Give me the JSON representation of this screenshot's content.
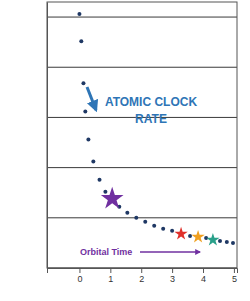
{
  "chart_data": {
    "type": "scatter",
    "annotations": [
      "ATOMIC CLOCK RATE",
      "Orbital Time"
    ],
    "xlim": [
      -1.05,
      5.1
    ],
    "xticks": [
      0,
      1,
      2,
      3,
      4,
      5
    ],
    "ylim": [
      0,
      5.3
    ],
    "yticks": [
      0,
      1,
      2,
      3,
      4,
      5
    ],
    "grid": true,
    "tick_labels": "x",
    "series": [
      {
        "color": "#1f3864",
        "marker": "circle",
        "x": [
          0,
          0.06,
          0.13,
          0.19,
          0.29,
          0.45,
          0.65,
          0.84,
          1.29,
          1.55,
          1.84,
          2.13,
          2.42,
          2.71,
          3.0,
          3.58,
          4.1,
          4.55,
          4.77,
          4.97
        ],
        "values": [
          5.06,
          4.52,
          3.68,
          3.12,
          2.56,
          2.12,
          1.76,
          1.52,
          1.22,
          1.1,
          1.0,
          0.92,
          0.84,
          0.78,
          0.74,
          0.64,
          0.6,
          0.54,
          0.52,
          0.5
        ]
      },
      {
        "colors": [
          "#7030a0",
          "#e0302a",
          "#f0a020",
          "#2aa08a"
        ],
        "marker": "star",
        "x": [
          1.06,
          3.29,
          3.84,
          4.32
        ],
        "values": [
          1.38,
          0.68,
          0.62,
          0.56
        ]
      }
    ]
  }
}
